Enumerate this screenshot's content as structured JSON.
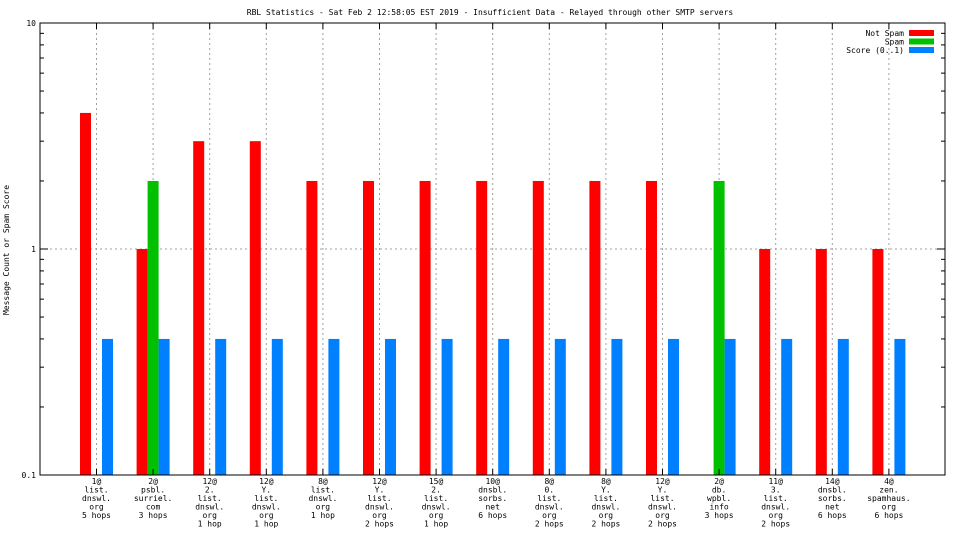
{
  "chart_data": {
    "type": "bar",
    "title": "RBL Statistics - Sat Feb  2 12:58:05 EST 2019 - Insufficient Data - Relayed through other SMTP servers",
    "ylabel": "Message Count or Spam Score",
    "xlabel": "",
    "yscale": "log",
    "ylim": [
      0.1,
      10
    ],
    "yticks": [
      "0.1",
      "1",
      "10"
    ],
    "grid": true,
    "legend_position": "top-right",
    "categories": [
      [
        "1@",
        "list.",
        "dnswl.",
        "org",
        "5 hops"
      ],
      [
        "2@",
        "psbl.",
        "surriel.",
        "com",
        "3 hops"
      ],
      [
        "12@",
        "2.",
        "list.",
        "dnswl.",
        "org",
        "1 hop"
      ],
      [
        "12@",
        "Y.",
        "list.",
        "dnswl.",
        "org",
        "1 hop"
      ],
      [
        "8@",
        "list.",
        "dnswl.",
        "org",
        "1 hop"
      ],
      [
        "12@",
        "Y.",
        "list.",
        "dnswl.",
        "org",
        "2 hops"
      ],
      [
        "15@",
        "2.",
        "list.",
        "dnswl.",
        "org",
        "1 hop"
      ],
      [
        "10@",
        "dnsbl.",
        "sorbs.",
        "net",
        "6 hops"
      ],
      [
        "8@",
        "0.",
        "list.",
        "dnswl.",
        "org",
        "2 hops"
      ],
      [
        "8@",
        "Y.",
        "list.",
        "dnswl.",
        "org",
        "2 hops"
      ],
      [
        "12@",
        "Y.",
        "list.",
        "dnswl.",
        "org",
        "2 hops"
      ],
      [
        "2@",
        "db.",
        "wpbl.",
        "info",
        "3 hops"
      ],
      [
        "11@",
        "3.",
        "list.",
        "dnswl.",
        "org",
        "2 hops"
      ],
      [
        "14@",
        "dnsbl.",
        "sorbs.",
        "net",
        "6 hops"
      ],
      [
        "4@",
        "zen.",
        "spamhaus.",
        "org",
        "6 hops"
      ]
    ],
    "series": [
      {
        "name": "Not Spam",
        "color": "#ff0000",
        "values": [
          4,
          1,
          3,
          3,
          2,
          2,
          2,
          2,
          2,
          2,
          2,
          0,
          1,
          1,
          1
        ]
      },
      {
        "name": "Spam",
        "color": "#00c000",
        "values": [
          0,
          2,
          0,
          0,
          0,
          0,
          0,
          0,
          0,
          0,
          0,
          2,
          0,
          0,
          0
        ]
      },
      {
        "name": "Score (0..1)",
        "color": "#0080ff",
        "values": [
          0.4,
          0.4,
          0.4,
          0.4,
          0.4,
          0.4,
          0.4,
          0.4,
          0.4,
          0.4,
          0.4,
          0.4,
          0.4,
          0.4,
          0.4
        ]
      }
    ]
  }
}
